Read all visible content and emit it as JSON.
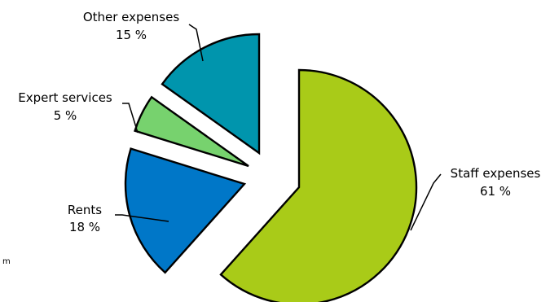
{
  "chart_data": {
    "type": "pie",
    "title": "",
    "slices": [
      {
        "label": "Staff expenses",
        "value": 61,
        "value_label": "61 %",
        "color": "#a9cb18",
        "exploded": true
      },
      {
        "label": "Rents",
        "value": 18,
        "value_label": "18 %",
        "color": "#0077c8",
        "exploded": true
      },
      {
        "label": "Expert services",
        "value": 5,
        "value_label": "5 %",
        "color": "#77d26e",
        "exploded": true
      },
      {
        "label": "Other expenses",
        "value": 15,
        "value_label": "15 %",
        "color": "#0095ad",
        "exploded": true
      }
    ],
    "legend": "none",
    "labels_position": "outside-with-leader-lines"
  },
  "footer": {
    "corner_text": "m"
  }
}
